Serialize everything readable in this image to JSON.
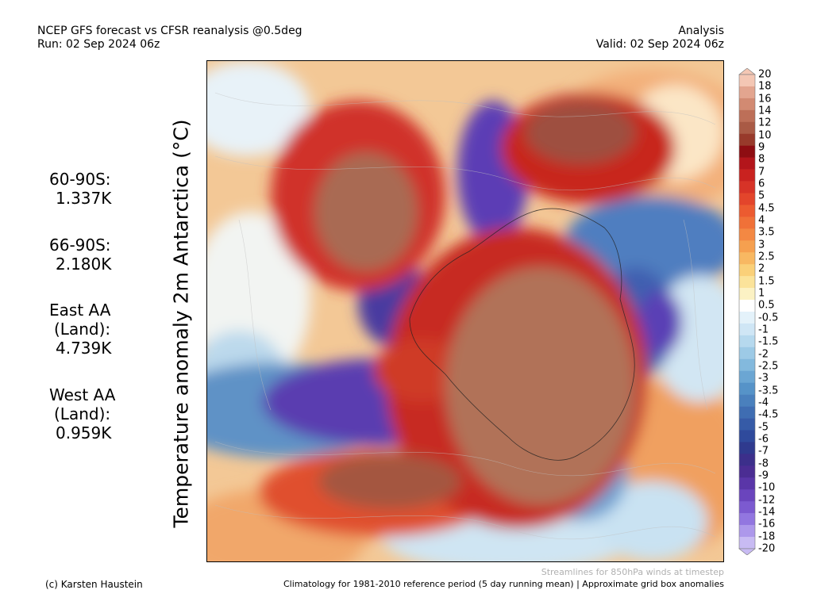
{
  "header": {
    "title": "NCEP GFS forecast vs CFSR reanalysis @0.5deg",
    "run": "Run: 02 Sep 2024 06z",
    "type": "Analysis",
    "valid": "Valid: 02 Sep 2024 06z"
  },
  "stats": [
    {
      "lines": [
        "60-90S:",
        "1.337K"
      ]
    },
    {
      "lines": [
        "66-90S:",
        "2.180K"
      ]
    },
    {
      "lines": [
        "East AA",
        "(Land):",
        "4.739K"
      ]
    },
    {
      "lines": [
        "West AA",
        "(Land):",
        "0.959K"
      ]
    }
  ],
  "y_label": "Temperature anomaly 2m Antarctica (°C)",
  "colorbar": {
    "levels": [
      "20",
      "18",
      "16",
      "14",
      "12",
      "10",
      "9",
      "8",
      "7",
      "6",
      "5",
      "4.5",
      "4",
      "3.5",
      "3",
      "2.5",
      "2",
      "1.5",
      "1",
      "0.5",
      "-0.5",
      "-1",
      "-1.5",
      "-2",
      "-2.5",
      "-3",
      "-3.5",
      "-4",
      "-4.5",
      "-5",
      "-6",
      "-7",
      "-8",
      "-9",
      "-10",
      "-12",
      "-14",
      "-16",
      "-18",
      "-20"
    ],
    "colors": [
      "#f4c7b4",
      "#e3a58f",
      "#d28a72",
      "#bd6f58",
      "#a95a45",
      "#983a2b",
      "#8e0d12",
      "#b3151b",
      "#c9221f",
      "#d73327",
      "#e3452b",
      "#ec5b30",
      "#f07138",
      "#f38843",
      "#f6a04f",
      "#f8b862",
      "#fad079",
      "#fbe39a",
      "#fcf2c4",
      "#ffffff",
      "#e4f2fa",
      "#cfe6f5",
      "#b6d9ee",
      "#9dcae6",
      "#83b9dd",
      "#6ba6d3",
      "#5693c8",
      "#4a80bd",
      "#3f6db2",
      "#365ba7",
      "#2f4a9c",
      "#2f3a8e",
      "#3c2f8b",
      "#4b2d93",
      "#5a36a8",
      "#6a45bd",
      "#7c5ad0",
      "#9276e0",
      "#ad98eb",
      "#c8bbf3"
    ]
  },
  "stream_note": "Streamlines for 850hPa winds at timestep",
  "copyright": "(c) Karsten Haustein",
  "climatology_note": "Climatology for 1981-2010 reference period (5 day running mean) | Approximate grid box anomalies"
}
